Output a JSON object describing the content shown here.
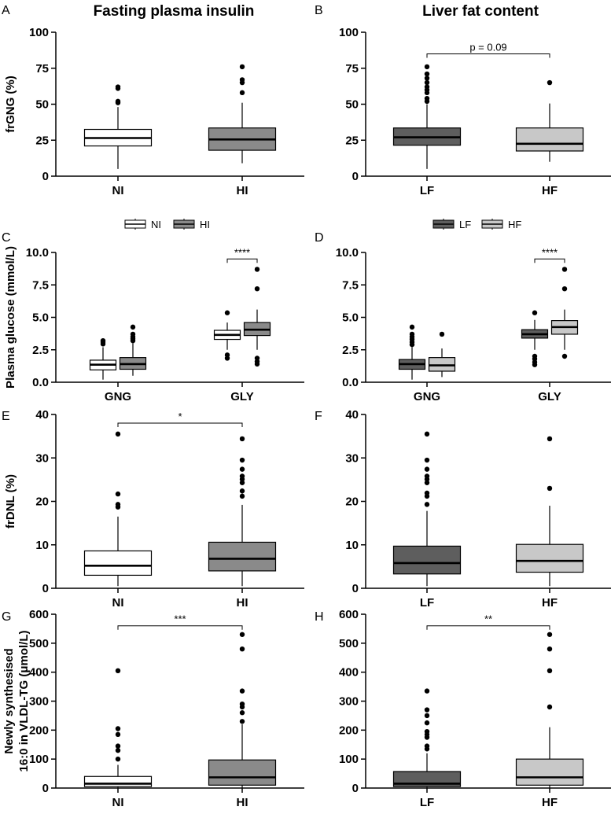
{
  "column_titles": [
    "Fasting plasma insulin",
    "Liver fat content"
  ],
  "colors": {
    "NI": "#ffffff",
    "HI": "#8a8a8a",
    "LF": "#5e5e5e",
    "HF": "#c8c8c8"
  },
  "chart_data": [
    {
      "panel": "A",
      "type": "box",
      "title": "",
      "ylabel": "frGNG (%)",
      "xlabel": "",
      "ylim": [
        0,
        100
      ],
      "yticks": [
        0,
        25,
        50,
        75,
        100
      ],
      "tick_decimals": 0,
      "categories": [
        "NI",
        "HI"
      ],
      "legend": [],
      "series": [
        {
          "name": "NI",
          "color": "NI",
          "boxes": [
            {
              "category": "NI",
              "q1": 21,
              "median": 26.5,
              "q3": 32.5,
              "whisker_low": 5,
              "whisker_high": 48,
              "outliers": [
                51,
                52,
                61,
                62
              ]
            }
          ]
        },
        {
          "name": "HI",
          "color": "HI",
          "boxes": [
            {
              "category": "HI",
              "q1": 18,
              "median": 25.5,
              "q3": 33.5,
              "whisker_low": 9,
              "whisker_high": 51,
              "outliers": [
                58,
                65,
                67,
                76
              ]
            }
          ]
        }
      ],
      "annotations": []
    },
    {
      "panel": "B",
      "type": "box",
      "title": "",
      "ylabel": "",
      "xlabel": "",
      "ylim": [
        0,
        100
      ],
      "yticks": [
        0,
        25,
        50,
        75,
        100
      ],
      "tick_decimals": 0,
      "categories": [
        "LF",
        "HF"
      ],
      "legend": [],
      "series": [
        {
          "name": "LF",
          "color": "LF",
          "boxes": [
            {
              "category": "LF",
              "q1": 21.5,
              "median": 27,
              "q3": 33.5,
              "whisker_low": 5,
              "whisker_high": 50,
              "outliers": [
                52,
                54,
                58,
                60,
                62,
                65,
                68,
                71,
                76
              ]
            }
          ]
        },
        {
          "name": "HF",
          "color": "HF",
          "boxes": [
            {
              "category": "HF",
              "q1": 17.5,
              "median": 22.5,
              "q3": 33.5,
              "whisker_low": 10,
              "whisker_high": 50.5,
              "outliers": [
                65
              ]
            }
          ]
        }
      ],
      "annotations": [
        {
          "from": "LF",
          "to": "HF",
          "text": "p = 0.09",
          "y": 85
        }
      ]
    },
    {
      "panel": "C",
      "type": "box",
      "title": "",
      "ylabel": "Plasma glucose (mmol/L)",
      "xlabel": "",
      "ylim": [
        0,
        10
      ],
      "yticks": [
        0,
        2.5,
        5,
        7.5,
        10
      ],
      "tick_decimals": 1,
      "categories": [
        "GNG",
        "GLY"
      ],
      "legend": [
        "NI",
        "HI"
      ],
      "series": [
        {
          "name": "NI",
          "color": "NI",
          "boxes": [
            {
              "category": "GNG",
              "q1": 0.95,
              "median": 1.35,
              "q3": 1.7,
              "whisker_low": 0.2,
              "whisker_high": 2.7,
              "outliers": [
                2.95,
                3.1,
                3.2
              ]
            },
            {
              "category": "GLY",
              "q1": 3.3,
              "median": 3.65,
              "q3": 4.0,
              "whisker_low": 2.5,
              "whisker_high": 4.6,
              "outliers": [
                1.85,
                2.1,
                5.35
              ]
            }
          ]
        },
        {
          "name": "HI",
          "color": "HI",
          "boxes": [
            {
              "category": "GNG",
              "q1": 1.0,
              "median": 1.4,
              "q3": 1.9,
              "whisker_low": 0.5,
              "whisker_high": 3.0,
              "outliers": [
                3.2,
                3.35,
                3.5,
                3.7,
                4.25
              ]
            },
            {
              "category": "GLY",
              "q1": 3.6,
              "median": 4.05,
              "q3": 4.6,
              "whisker_low": 2.5,
              "whisker_high": 5.6,
              "outliers": [
                1.4,
                1.6,
                1.85,
                7.2,
                8.7
              ]
            }
          ]
        }
      ],
      "annotations": [
        {
          "from": "GLY:NI",
          "to": "GLY:HI",
          "text": "****",
          "y": 9.5
        }
      ]
    },
    {
      "panel": "D",
      "type": "box",
      "title": "",
      "ylabel": "",
      "xlabel": "",
      "ylim": [
        0,
        10
      ],
      "yticks": [
        0,
        2.5,
        5,
        7.5,
        10
      ],
      "tick_decimals": 1,
      "categories": [
        "GNG",
        "GLY"
      ],
      "legend": [
        "LF",
        "HF"
      ],
      "series": [
        {
          "name": "LF",
          "color": "LF",
          "boxes": [
            {
              "category": "GNG",
              "q1": 1.0,
              "median": 1.4,
              "q3": 1.75,
              "whisker_low": 0.2,
              "whisker_high": 2.7,
              "outliers": [
                2.9,
                3.1,
                3.3,
                3.5,
                3.7,
                4.25
              ]
            },
            {
              "category": "GLY",
              "q1": 3.4,
              "median": 3.7,
              "q3": 4.05,
              "whisker_low": 2.5,
              "whisker_high": 4.8,
              "outliers": [
                1.35,
                1.55,
                1.8,
                2.0,
                5.35
              ]
            }
          ]
        },
        {
          "name": "HF",
          "color": "HF",
          "boxes": [
            {
              "category": "GNG",
              "q1": 0.85,
              "median": 1.3,
              "q3": 1.9,
              "whisker_low": 0.4,
              "whisker_high": 2.6,
              "outliers": [
                3.7
              ]
            },
            {
              "category": "GLY",
              "q1": 3.7,
              "median": 4.25,
              "q3": 4.75,
              "whisker_low": 2.5,
              "whisker_high": 5.6,
              "outliers": [
                2.0,
                7.2,
                8.7
              ]
            }
          ]
        }
      ],
      "annotations": [
        {
          "from": "GLY:LF",
          "to": "GLY:HF",
          "text": "****",
          "y": 9.5
        }
      ]
    },
    {
      "panel": "E",
      "type": "box",
      "title": "",
      "ylabel": "frDNL (%)",
      "xlabel": "",
      "ylim": [
        0,
        40
      ],
      "yticks": [
        0,
        10,
        20,
        30,
        40
      ],
      "tick_decimals": 0,
      "categories": [
        "NI",
        "HI"
      ],
      "legend": [],
      "series": [
        {
          "name": "NI",
          "color": "NI",
          "boxes": [
            {
              "category": "NI",
              "q1": 3,
              "median": 5.2,
              "q3": 8.6,
              "whisker_low": 0.5,
              "whisker_high": 16.5,
              "outliers": [
                18.7,
                19.3,
                21.7,
                35.5
              ]
            }
          ]
        },
        {
          "name": "HI",
          "color": "HI",
          "boxes": [
            {
              "category": "HI",
              "q1": 4,
              "median": 6.8,
              "q3": 10.6,
              "whisker_low": 0.5,
              "whisker_high": 19.2,
              "outliers": [
                21.2,
                22.4,
                24.3,
                25.1,
                25.8,
                27.4,
                29.5,
                34.4
              ]
            }
          ]
        }
      ],
      "annotations": [
        {
          "from": "NI",
          "to": "HI",
          "text": "*",
          "y": 38
        }
      ]
    },
    {
      "panel": "F",
      "type": "box",
      "title": "",
      "ylabel": "",
      "xlabel": "",
      "ylim": [
        0,
        40
      ],
      "yticks": [
        0,
        10,
        20,
        30,
        40
      ],
      "tick_decimals": 0,
      "categories": [
        "LF",
        "HF"
      ],
      "legend": [],
      "series": [
        {
          "name": "LF",
          "color": "LF",
          "boxes": [
            {
              "category": "LF",
              "q1": 3.3,
              "median": 5.8,
              "q3": 9.7,
              "whisker_low": 0.5,
              "whisker_high": 17.8,
              "outliers": [
                19.3,
                21.2,
                21.9,
                24.3,
                25.1,
                25.8,
                27.4,
                29.5,
                35.5
              ]
            }
          ]
        },
        {
          "name": "HF",
          "color": "HF",
          "boxes": [
            {
              "category": "HF",
              "q1": 3.7,
              "median": 6.3,
              "q3": 10.1,
              "whisker_low": 0.5,
              "whisker_high": 19,
              "outliers": [
                23,
                34.4
              ]
            }
          ]
        }
      ],
      "annotations": []
    },
    {
      "panel": "G",
      "type": "box",
      "title": "",
      "ylabel": "Newly synthesised 16:0 in VLDL-TG (μmol/L)",
      "xlabel": "",
      "ylim": [
        0,
        600
      ],
      "yticks": [
        0,
        100,
        200,
        300,
        400,
        500,
        600
      ],
      "tick_decimals": 0,
      "categories": [
        "NI",
        "HI"
      ],
      "legend": [],
      "series": [
        {
          "name": "NI",
          "color": "NI",
          "boxes": [
            {
              "category": "NI",
              "q1": 5,
              "median": 15,
              "q3": 40,
              "whisker_low": 0,
              "whisker_high": 80,
              "outliers": [
                100,
                130,
                145,
                185,
                205,
                405
              ]
            }
          ]
        },
        {
          "name": "HI",
          "color": "HI",
          "boxes": [
            {
              "category": "HI",
              "q1": 10,
              "median": 37,
              "q3": 97,
              "whisker_low": 0,
              "whisker_high": 220,
              "outliers": [
                230,
                260,
                280,
                290,
                335,
                480,
                530
              ]
            }
          ]
        }
      ],
      "annotations": [
        {
          "from": "NI",
          "to": "HI",
          "text": "***",
          "y": 560
        }
      ]
    },
    {
      "panel": "H",
      "type": "box",
      "title": "",
      "ylabel": "",
      "xlabel": "",
      "ylim": [
        0,
        600
      ],
      "yticks": [
        0,
        100,
        200,
        300,
        400,
        500,
        600
      ],
      "tick_decimals": 0,
      "categories": [
        "LF",
        "HF"
      ],
      "legend": [],
      "series": [
        {
          "name": "LF",
          "color": "LF",
          "boxes": [
            {
              "category": "LF",
              "q1": 5,
              "median": 15,
              "q3": 57,
              "whisker_low": 0,
              "whisker_high": 120,
              "outliers": [
                135,
                145,
                175,
                185,
                195,
                225,
                250,
                270,
                335
              ]
            }
          ]
        },
        {
          "name": "HF",
          "color": "HF",
          "boxes": [
            {
              "category": "HF",
              "q1": 10,
              "median": 37,
              "q3": 100,
              "whisker_low": 0,
              "whisker_high": 210,
              "outliers": [
                280,
                405,
                480,
                530
              ]
            }
          ]
        }
      ],
      "annotations": [
        {
          "from": "LF",
          "to": "HF",
          "text": "**",
          "y": 560
        }
      ]
    }
  ]
}
